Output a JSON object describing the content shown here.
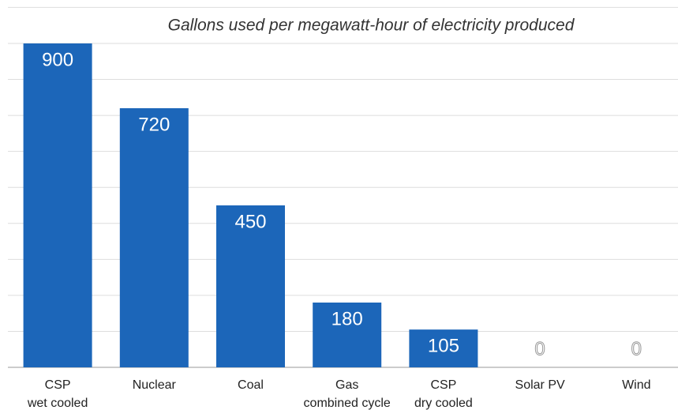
{
  "chart_data": {
    "type": "bar",
    "title": "Gallons used per megawatt-hour of electricity produced",
    "categories": [
      "CSP\nwet cooled",
      "Nuclear",
      "Coal",
      "Gas\ncombined cycle",
      "CSP\ndry cooled",
      "Solar PV",
      "Wind"
    ],
    "values": [
      900,
      720,
      450,
      180,
      105,
      0,
      0
    ],
    "color": "#1c66b9",
    "ylim": [
      0,
      1000
    ],
    "yticks": [
      0,
      100,
      200,
      300,
      400,
      500,
      600,
      700,
      800,
      900,
      1000
    ],
    "grid": true
  }
}
